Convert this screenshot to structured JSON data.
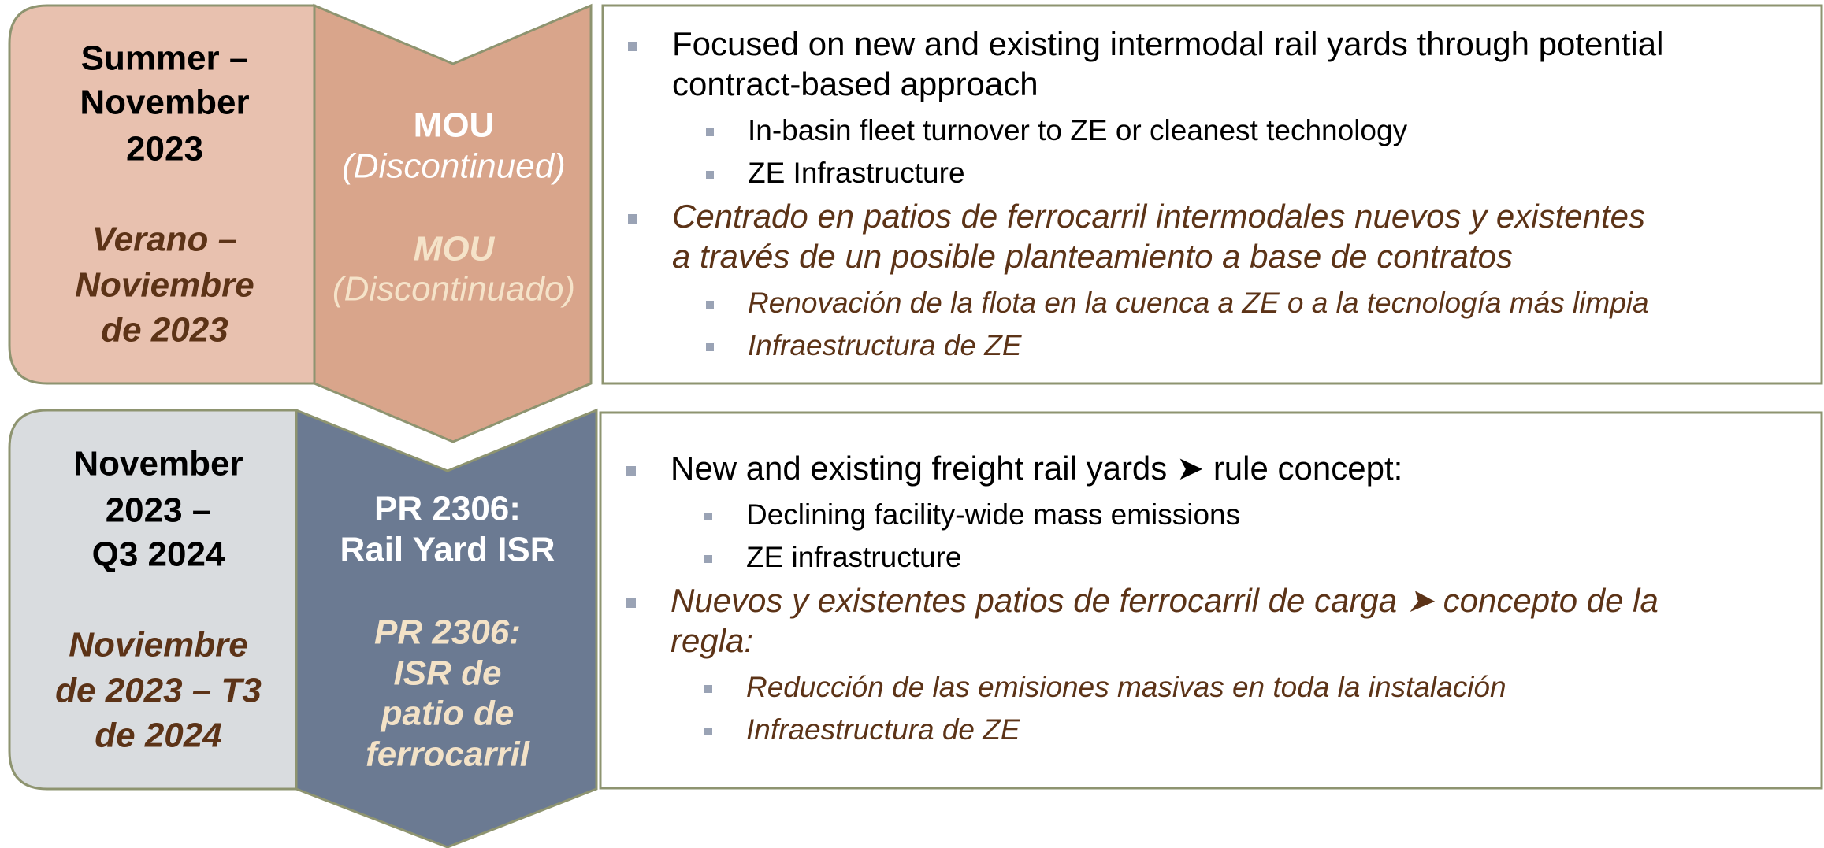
{
  "rows": [
    {
      "period": [
        "Summer –",
        "November",
        "2023"
      ],
      "period_es": [
        "Verano –",
        "Noviembre",
        "de 2023"
      ],
      "phase": [
        "MOU",
        "(Discontinued)"
      ],
      "phase_es": [
        "MOU",
        "(Discontinuado)"
      ],
      "bullets": [
        {
          "lines": [
            "Focused on new and existing intermodal rail yards through potential",
            "contract-based approach"
          ],
          "sub": [
            "In-basin fleet turnover to ZE or cleanest technology",
            "ZE Infrastructure"
          ]
        },
        {
          "lines": [
            "Centrado en patios de ferrocarril intermodales nuevos y existentes",
            "a través de un posible planteamiento a base de contratos"
          ],
          "sub": [
            "Renovación de la flota en la cuenca a ZE o a la tecnología más limpia",
            "Infraestructura de ZE"
          ]
        }
      ]
    },
    {
      "period": [
        "November",
        "2023 –",
        "Q3 2024"
      ],
      "period_es": [
        "Noviembre",
        "de 2023 – T3",
        "de 2024"
      ],
      "phase": [
        "PR 2306:",
        "Rail Yard ISR"
      ],
      "phase_es": [
        "PR 2306:",
        "ISR de",
        "patio de",
        "ferrocarril"
      ],
      "bullets": [
        {
          "lines": [
            "New and existing freight rail yards ➤ rule concept:"
          ],
          "sub": [
            "Declining facility-wide mass emissions",
            "ZE infrastructure"
          ]
        },
        {
          "lines": [
            "Nuevos y existentes patios de ferrocarril de carga ➤ concepto de la",
            "regla:"
          ],
          "sub": [
            "Reducción de las emisiones masivas en toda la instalación",
            "Infraestructura de ZE"
          ]
        }
      ]
    }
  ]
}
